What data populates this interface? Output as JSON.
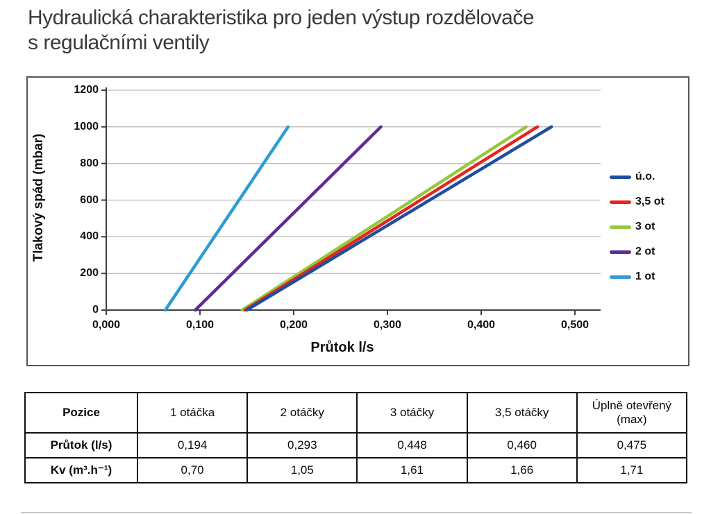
{
  "header": {
    "title_line1": "Hydraulická charakteristika pro jeden výstup rozdělovače",
    "title_line2": "s regulačními ventily"
  },
  "colors": {
    "gridline": "#bdbdbd",
    "axis": "#3f3f3f",
    "frame_border": "#555555",
    "text": "#111111"
  },
  "chart_data": {
    "type": "line",
    "xlabel": "Průtok l/s",
    "ylabel": "Tlakový spád (mbar)",
    "xlim": [
      0,
      0.5
    ],
    "ylim": [
      0,
      1200
    ],
    "x_ticks": [
      0,
      0.1,
      0.2,
      0.3,
      0.4,
      0.5
    ],
    "x_tick_labels": [
      "0,000",
      "0,100",
      "0,200",
      "0,300",
      "0,400",
      "0,500"
    ],
    "y_ticks": [
      0,
      200,
      400,
      600,
      800,
      1000,
      1200
    ],
    "y_tick_labels": [
      "0",
      "200",
      "400",
      "600",
      "800",
      "1000",
      "1200"
    ],
    "grid": "horizontal",
    "legend_position": "right",
    "series": [
      {
        "name": "ú.o.",
        "color": "#1f4ea1",
        "points": [
          [
            0.15,
            0
          ],
          [
            0.475,
            1000
          ]
        ]
      },
      {
        "name": "3,5 ot",
        "color": "#e62520",
        "points": [
          [
            0.148,
            0
          ],
          [
            0.46,
            1000
          ]
        ]
      },
      {
        "name": "3 ot",
        "color": "#94c83d",
        "points": [
          [
            0.145,
            0
          ],
          [
            0.448,
            1000
          ]
        ]
      },
      {
        "name": "2 ot",
        "color": "#5c2e91",
        "points": [
          [
            0.095,
            0
          ],
          [
            0.293,
            1000
          ]
        ]
      },
      {
        "name": "1 ot",
        "color": "#2e9bd6",
        "points": [
          [
            0.063,
            0
          ],
          [
            0.194,
            1000
          ]
        ]
      }
    ]
  },
  "table": {
    "columns": [
      "Pozice",
      "1 otáčka",
      "2 otáčky",
      "3 otáčky",
      "3,5 otáčky",
      "Úplně otevřený (max)"
    ],
    "rows": [
      {
        "label": "Průtok (l/s)",
        "values": [
          "0,194",
          "0,293",
          "0,448",
          "0,460",
          "0,475"
        ]
      },
      {
        "label": "Kv (m³.h⁻¹)",
        "values": [
          "0,70",
          "1,05",
          "1,61",
          "1,66",
          "1,71"
        ]
      }
    ]
  }
}
